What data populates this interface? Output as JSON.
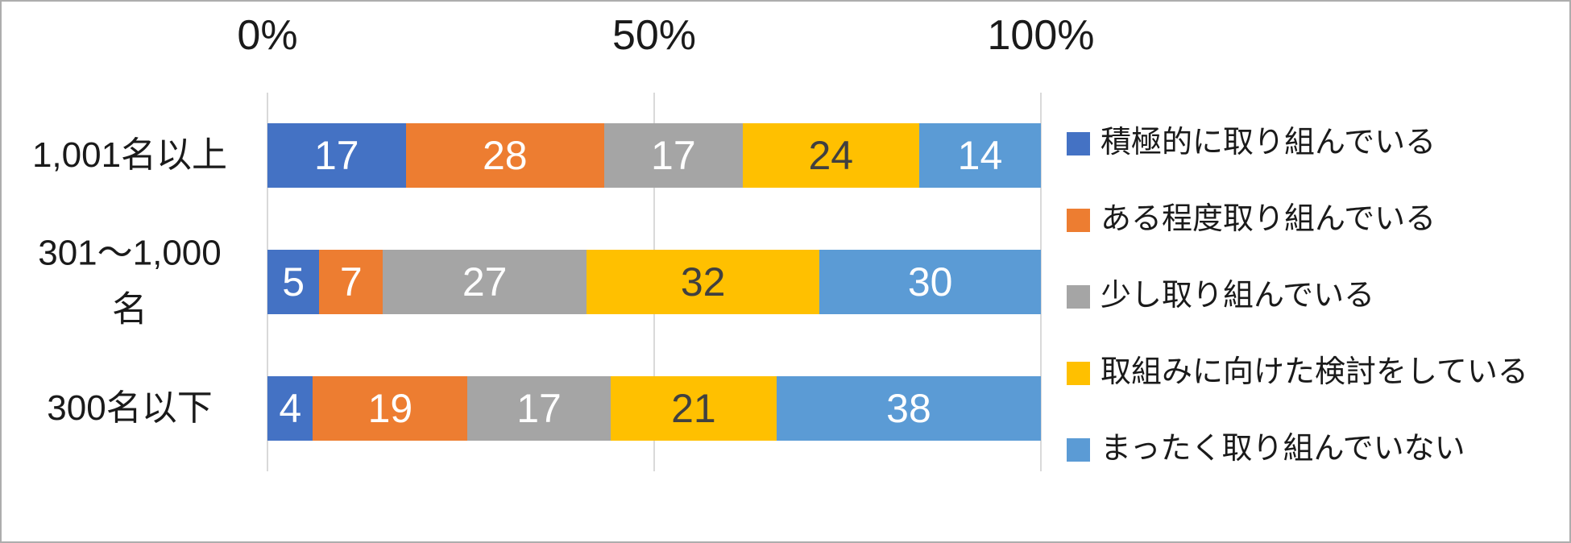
{
  "chart_data": {
    "type": "bar",
    "stacked": true,
    "percent_stacked": true,
    "orientation": "horizontal",
    "title": "",
    "xlabel": "",
    "ylabel": "",
    "categories": [
      "1,001名以上",
      "301〜1,000名",
      "300名以下"
    ],
    "categories_display": [
      "1,001名以上",
      "301〜1,000\n名",
      "300名以下"
    ],
    "series": [
      {
        "name": "積極的に取り組んでいる",
        "color": "#4472C4",
        "label_color": "#FFFFFF",
        "values": [
          17,
          5,
          4
        ]
      },
      {
        "name": "ある程度取り組んでいる",
        "color": "#ED7D31",
        "label_color": "#FFFFFF",
        "values": [
          28,
          7,
          19
        ]
      },
      {
        "name": "少し取り組んでいる",
        "color": "#A5A5A5",
        "label_color": "#FFFFFF",
        "values": [
          17,
          27,
          17
        ]
      },
      {
        "name": "取組みに向けた検討をしている",
        "color": "#FFC000",
        "label_color": "#404040",
        "values": [
          24,
          32,
          21
        ]
      },
      {
        "name": "まったく取り組んでいない",
        "color": "#5B9BD5",
        "label_color": "#FFFFFF",
        "values": [
          14,
          30,
          38
        ]
      }
    ],
    "x_ticks": [
      {
        "label": "0%",
        "value": 0
      },
      {
        "label": "50%",
        "value": 50
      },
      {
        "label": "100%",
        "value": 100
      }
    ],
    "xlim": [
      0,
      100
    ],
    "gridlines": true,
    "axis_position": "top",
    "legend_position": "right",
    "data_labels": true
  },
  "colors": {
    "gridline": "#D9D9D9",
    "text": "#1A1A1A",
    "background": "#FFFFFF",
    "canvas_border": "#ADADAD"
  }
}
